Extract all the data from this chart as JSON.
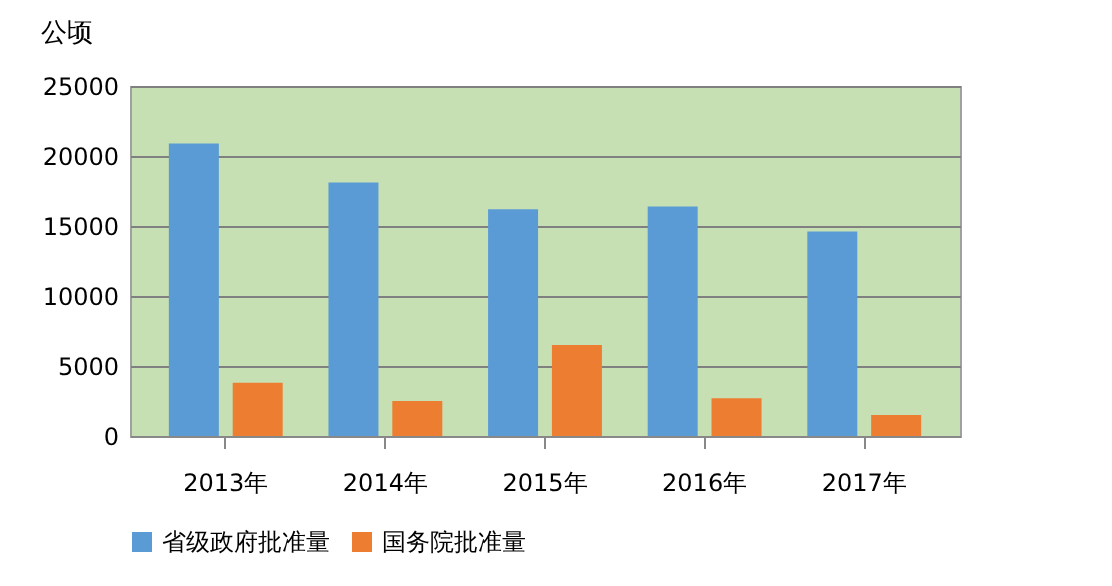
{
  "chart_data": {
    "type": "bar",
    "ylabel": "公顷",
    "categories": [
      "2013年",
      "2014年",
      "2015年",
      "2016年",
      "2017年"
    ],
    "series": [
      {
        "name": "省级政府批准量",
        "color": "#5b9bd5",
        "values": [
          20900,
          18100,
          16200,
          16400,
          14600
        ]
      },
      {
        "name": "国务院批准量",
        "color": "#ed7d31",
        "values": [
          3800,
          2500,
          6500,
          2700,
          1500
        ]
      }
    ],
    "ylim": [
      0,
      25000
    ],
    "yticks": [
      0,
      5000,
      10000,
      15000,
      20000,
      25000
    ],
    "grid": "y",
    "legend": "bottom"
  }
}
